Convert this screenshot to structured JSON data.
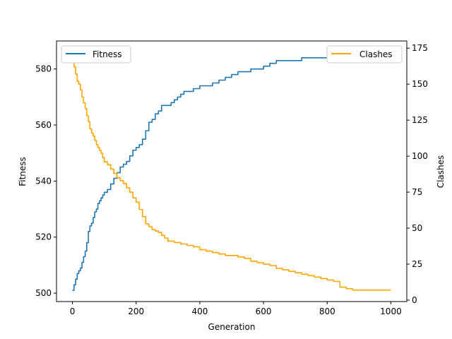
{
  "chart_data": {
    "type": "line",
    "xlabel": "Generation",
    "ylabel_left": "Fitness",
    "ylabel_right": "Clashes",
    "xlim": [
      -50,
      1050
    ],
    "ylim_left": [
      497,
      590
    ],
    "ylim_right": [
      -1,
      180
    ],
    "x_ticks": [
      0,
      200,
      400,
      600,
      800,
      1000
    ],
    "y_left_ticks": [
      500,
      520,
      540,
      560,
      580
    ],
    "y_right_ticks": [
      0,
      25,
      50,
      75,
      100,
      125,
      150,
      175
    ],
    "grid": false,
    "series": [
      {
        "name": "Fitness",
        "axis": "left",
        "color": "#1f77b4",
        "legend_position": "top-left",
        "points": [
          [
            0,
            501
          ],
          [
            5,
            503
          ],
          [
            10,
            505
          ],
          [
            15,
            507
          ],
          [
            20,
            508
          ],
          [
            25,
            509
          ],
          [
            30,
            511
          ],
          [
            35,
            513
          ],
          [
            40,
            515
          ],
          [
            45,
            518
          ],
          [
            50,
            522
          ],
          [
            55,
            524
          ],
          [
            60,
            525
          ],
          [
            65,
            527
          ],
          [
            70,
            529
          ],
          [
            75,
            530
          ],
          [
            80,
            532
          ],
          [
            85,
            533
          ],
          [
            90,
            534
          ],
          [
            95,
            535
          ],
          [
            100,
            536
          ],
          [
            110,
            537
          ],
          [
            120,
            539
          ],
          [
            130,
            541
          ],
          [
            140,
            543
          ],
          [
            150,
            545
          ],
          [
            160,
            546
          ],
          [
            170,
            547
          ],
          [
            180,
            549
          ],
          [
            190,
            551
          ],
          [
            200,
            552
          ],
          [
            210,
            553
          ],
          [
            220,
            555
          ],
          [
            230,
            558
          ],
          [
            240,
            561
          ],
          [
            250,
            562
          ],
          [
            260,
            564
          ],
          [
            270,
            565
          ],
          [
            280,
            567
          ],
          [
            290,
            567
          ],
          [
            300,
            567
          ],
          [
            310,
            568
          ],
          [
            320,
            569
          ],
          [
            330,
            570
          ],
          [
            340,
            571
          ],
          [
            350,
            572
          ],
          [
            360,
            572
          ],
          [
            380,
            573
          ],
          [
            400,
            574
          ],
          [
            420,
            574
          ],
          [
            440,
            575
          ],
          [
            460,
            576
          ],
          [
            480,
            577
          ],
          [
            500,
            578
          ],
          [
            520,
            579
          ],
          [
            540,
            579
          ],
          [
            560,
            580
          ],
          [
            580,
            580
          ],
          [
            600,
            581
          ],
          [
            620,
            582
          ],
          [
            640,
            583
          ],
          [
            660,
            583
          ],
          [
            680,
            583
          ],
          [
            700,
            583
          ],
          [
            720,
            584
          ],
          [
            740,
            584
          ],
          [
            760,
            584
          ],
          [
            780,
            584
          ],
          [
            800,
            584
          ],
          [
            820,
            584
          ],
          [
            840,
            584
          ],
          [
            850,
            585
          ],
          [
            860,
            585
          ],
          [
            880,
            585
          ],
          [
            900,
            585
          ],
          [
            920,
            585
          ],
          [
            940,
            585
          ],
          [
            960,
            585
          ],
          [
            980,
            585
          ],
          [
            1000,
            585
          ]
        ]
      },
      {
        "name": "Clashes",
        "axis": "right",
        "color": "#ffa500",
        "legend_position": "top-right",
        "points": [
          [
            0,
            171
          ],
          [
            5,
            162
          ],
          [
            10,
            157
          ],
          [
            15,
            152
          ],
          [
            20,
            150
          ],
          [
            25,
            146
          ],
          [
            30,
            141
          ],
          [
            35,
            137
          ],
          [
            40,
            133
          ],
          [
            45,
            128
          ],
          [
            50,
            124
          ],
          [
            55,
            119
          ],
          [
            60,
            116
          ],
          [
            65,
            114
          ],
          [
            70,
            111
          ],
          [
            75,
            108
          ],
          [
            80,
            106
          ],
          [
            85,
            104
          ],
          [
            90,
            102
          ],
          [
            95,
            99
          ],
          [
            100,
            96
          ],
          [
            110,
            94
          ],
          [
            120,
            91
          ],
          [
            130,
            88
          ],
          [
            140,
            85
          ],
          [
            150,
            83
          ],
          [
            160,
            81
          ],
          [
            170,
            78
          ],
          [
            180,
            75
          ],
          [
            190,
            71
          ],
          [
            200,
            68
          ],
          [
            210,
            63
          ],
          [
            220,
            58
          ],
          [
            230,
            53
          ],
          [
            240,
            51
          ],
          [
            250,
            49
          ],
          [
            260,
            48
          ],
          [
            270,
            47
          ],
          [
            280,
            45
          ],
          [
            290,
            43
          ],
          [
            300,
            41
          ],
          [
            320,
            40
          ],
          [
            340,
            39
          ],
          [
            360,
            38
          ],
          [
            380,
            37
          ],
          [
            400,
            35
          ],
          [
            420,
            34
          ],
          [
            440,
            33
          ],
          [
            460,
            32
          ],
          [
            480,
            31
          ],
          [
            500,
            31
          ],
          [
            520,
            30
          ],
          [
            540,
            29
          ],
          [
            560,
            27
          ],
          [
            580,
            26
          ],
          [
            600,
            25
          ],
          [
            620,
            24
          ],
          [
            640,
            22
          ],
          [
            660,
            21
          ],
          [
            680,
            20
          ],
          [
            700,
            19
          ],
          [
            720,
            18
          ],
          [
            740,
            17
          ],
          [
            760,
            16
          ],
          [
            780,
            15
          ],
          [
            800,
            14
          ],
          [
            820,
            13
          ],
          [
            840,
            9
          ],
          [
            860,
            8
          ],
          [
            880,
            7
          ],
          [
            900,
            7
          ],
          [
            920,
            7
          ],
          [
            940,
            7
          ],
          [
            960,
            7
          ],
          [
            980,
            7
          ],
          [
            1000,
            7
          ]
        ]
      }
    ]
  }
}
